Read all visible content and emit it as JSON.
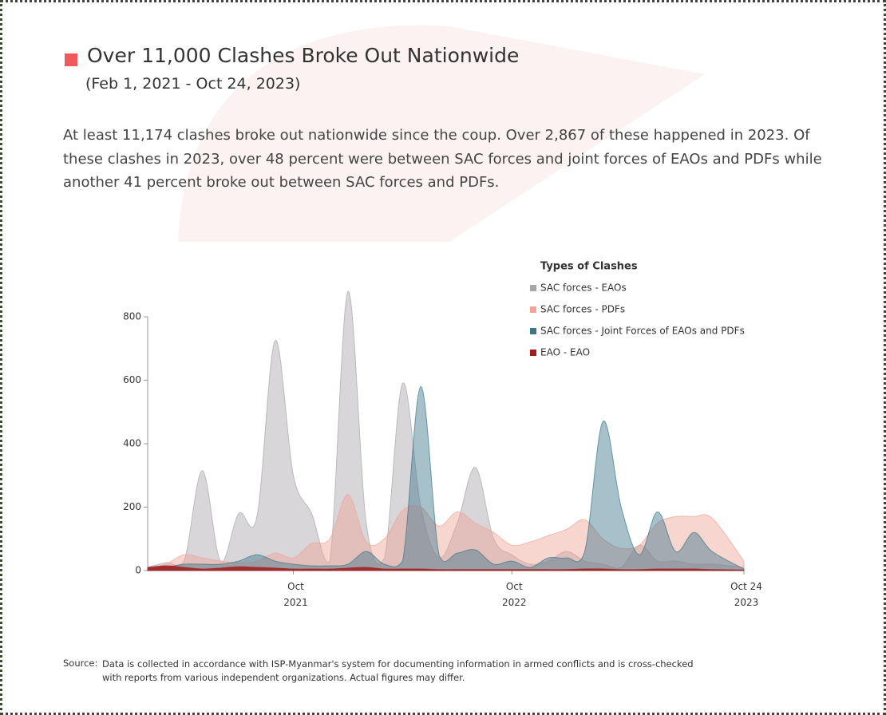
{
  "title": "Over 11,000 Clashes Broke Out Nationwide",
  "subtitle": "(Feb 1, 2021 - Oct 24, 2023)",
  "description": "At least 11,174 clashes broke out nationwide since the coup. Over 2,867 of these happened in 2023. Of these clashes in 2023, over 48 percent were between SAC forces and  joint forces of EAOs and PDFs while another 41 percent broke out between SAC forces and PDFs.",
  "source_label": "Source:",
  "source_text": "Data is collected in accordance with ISP-Myanmar's system for documenting information in armed conflicts and is cross-checked with reports from various independent organizations. Actual figures may differ.",
  "chart_data": {
    "type": "area",
    "legend_title": "Types of Clashes",
    "x": [
      "2021-02",
      "2021-03",
      "2021-04",
      "2021-05",
      "2021-06",
      "2021-07",
      "2021-08",
      "2021-09",
      "2021-10",
      "2021-11",
      "2021-12",
      "2022-01",
      "2022-02",
      "2022-03",
      "2022-04",
      "2022-05",
      "2022-06",
      "2022-07",
      "2022-08",
      "2022-09",
      "2022-10",
      "2022-11",
      "2022-12",
      "2023-01",
      "2023-02",
      "2023-03",
      "2023-04",
      "2023-05",
      "2023-06",
      "2023-07",
      "2023-08",
      "2023-09",
      "2023-10-24"
    ],
    "xlim": [
      "2021-02",
      "2023-10-24"
    ],
    "xticks": [
      {
        "value": "2021-10",
        "label": "Oct\n2021"
      },
      {
        "value": "2022-10",
        "label": "Oct\n2022"
      },
      {
        "value": "2023-10-24",
        "label": "Oct 24\n2023"
      }
    ],
    "ylim": [
      0,
      800
    ],
    "yticks": [
      0,
      200,
      400,
      600,
      800
    ],
    "series": [
      {
        "name": "SAC forces - EAOs",
        "color": "#aaa5aa",
        "values": [
          10,
          25,
          30,
          315,
          30,
          180,
          170,
          725,
          300,
          180,
          30,
          880,
          150,
          40,
          590,
          200,
          40,
          150,
          325,
          100,
          50,
          20,
          30,
          60,
          30,
          20,
          10,
          80,
          30,
          30,
          20,
          20,
          10
        ]
      },
      {
        "name": "SAC forces - PDFs",
        "color": "#f0a396",
        "values": [
          5,
          20,
          50,
          40,
          30,
          25,
          30,
          55,
          40,
          85,
          100,
          240,
          90,
          100,
          190,
          200,
          140,
          185,
          150,
          120,
          80,
          90,
          110,
          130,
          160,
          100,
          70,
          80,
          150,
          170,
          170,
          165,
          30
        ]
      },
      {
        "name": "SAC forces - Joint Forces of EAOs and PDFs",
        "color": "#3b7689",
        "values": [
          5,
          10,
          20,
          20,
          20,
          30,
          50,
          30,
          20,
          15,
          15,
          20,
          60,
          20,
          30,
          580,
          50,
          55,
          65,
          20,
          30,
          10,
          40,
          40,
          60,
          470,
          200,
          50,
          185,
          60,
          120,
          60,
          5
        ]
      },
      {
        "name": "EAO - EAO",
        "color": "#a31b1b",
        "values": [
          10,
          15,
          10,
          5,
          8,
          12,
          10,
          8,
          5,
          5,
          5,
          8,
          10,
          5,
          5,
          5,
          3,
          3,
          3,
          3,
          3,
          3,
          3,
          3,
          5,
          5,
          3,
          3,
          5,
          5,
          5,
          3,
          2
        ]
      }
    ]
  }
}
